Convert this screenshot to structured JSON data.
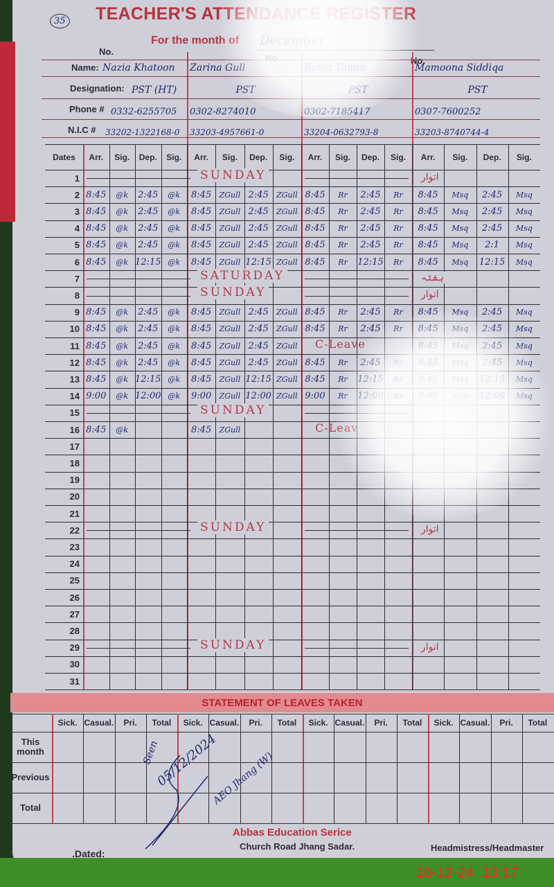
{
  "header": {
    "title": "TEACHER'S ATTENDANCE REGISTER",
    "month_label": "For the month of",
    "month_value": "December",
    "page_number": "35",
    "no_label": "No.",
    "name_label": "Name:",
    "designation_label": "Designation:",
    "phone_label": "Phone #",
    "nic_label": "N.I.C #"
  },
  "teachers": [
    {
      "name": "Nazia Khatoon",
      "designation": "PST (HT)",
      "phone": "0332-6255705",
      "nic": "33202-1322168-0"
    },
    {
      "name": "Zarina Gull",
      "designation": "PST",
      "phone": "0302-8274010",
      "nic": "33203-4957661-0"
    },
    {
      "name": "Rabia Tahira",
      "designation": "PST",
      "phone": "0302-7185417",
      "nic": "33204-0632793-8"
    },
    {
      "name": "Mamoona Siddiqa",
      "designation": "PST",
      "phone": "0307-7600252",
      "nic": "33203-8740744-4"
    }
  ],
  "grid": {
    "dates_label": "Dates",
    "sub_headers": [
      "Arr.",
      "Sig.",
      "Dep.",
      "Sig."
    ],
    "rows": [
      {
        "date": "1",
        "note": "SUNDAY",
        "urdu": "اتوار"
      },
      {
        "date": "2",
        "cells": [
          "8:45",
          "@k",
          "2:45",
          "@k",
          "8:45",
          "ZGull",
          "2:45",
          "ZGull",
          "8:45",
          "Rr",
          "2:45",
          "Rr",
          "8:45",
          "Msq",
          "2:45",
          "Msq"
        ]
      },
      {
        "date": "3",
        "cells": [
          "8:45",
          "@k",
          "2:45",
          "@k",
          "8:45",
          "ZGull",
          "2:45",
          "ZGull",
          "8:45",
          "Rr",
          "2:45",
          "Rr",
          "8:45",
          "Msq",
          "2:45",
          "Msq"
        ]
      },
      {
        "date": "4",
        "cells": [
          "8:45",
          "@k",
          "2:45",
          "@k",
          "8:45",
          "ZGull",
          "2:45",
          "ZGull",
          "8:45",
          "Rr",
          "2:45",
          "Rr",
          "8:45",
          "Msq",
          "2:45",
          "Msq"
        ]
      },
      {
        "date": "5",
        "cells": [
          "8:45",
          "@k",
          "2:45",
          "@k",
          "8:45",
          "ZGull",
          "2:45",
          "ZGull",
          "8:45",
          "Rr",
          "2:45",
          "Rr",
          "8:45",
          "Msq",
          "2:1",
          "Msq"
        ]
      },
      {
        "date": "6",
        "cells": [
          "8:45",
          "@k",
          "12:15",
          "@k",
          "8:45",
          "ZGull",
          "12:15",
          "ZGull",
          "8:45",
          "Rr",
          "12:15",
          "Rr",
          "8:45",
          "Msq",
          "12:15",
          "Msq"
        ]
      },
      {
        "date": "7",
        "note": "SATURDAY",
        "urdu": "ہفتہ"
      },
      {
        "date": "8",
        "note": "SUNDAY",
        "urdu": "اتوار"
      },
      {
        "date": "9",
        "cells": [
          "8:45",
          "@k",
          "2:45",
          "@k",
          "8:45",
          "ZGull",
          "2:45",
          "ZGull",
          "8:45",
          "Rr",
          "2:45",
          "Rr",
          "8:45",
          "Msq",
          "2:45",
          "Msq"
        ]
      },
      {
        "date": "10",
        "cells": [
          "8:45",
          "@k",
          "2:45",
          "@k",
          "8:45",
          "ZGull",
          "2:45",
          "ZGull",
          "8:45",
          "Rr",
          "2:45",
          "Rr",
          "8:45",
          "Msq",
          "2:45",
          "Msq"
        ]
      },
      {
        "date": "11",
        "cells": [
          "8:45",
          "@k",
          "2:45",
          "@k",
          "8:45",
          "ZGull",
          "2:45",
          "ZGull",
          "",
          "",
          "",
          "",
          "8:45",
          "Msq",
          "2:45",
          "Msq"
        ],
        "leave": {
          "teacher": 2,
          "text": "C-Leave"
        }
      },
      {
        "date": "12",
        "cells": [
          "8:45",
          "@k",
          "2:45",
          "@k",
          "8:45",
          "ZGull",
          "2:45",
          "ZGull",
          "8:45",
          "Rr",
          "2:45",
          "Rr",
          "8:45",
          "Msq",
          "2:45",
          "Msq"
        ]
      },
      {
        "date": "13",
        "cells": [
          "8:45",
          "@k",
          "12:15",
          "@k",
          "8:45",
          "ZGull",
          "12:15",
          "ZGull",
          "8:45",
          "Rr",
          "12:15",
          "Rr",
          "8:45",
          "Msq",
          "12:15",
          "Msq"
        ]
      },
      {
        "date": "14",
        "cells": [
          "9:00",
          "@k",
          "12:00",
          "@k",
          "9:00",
          "ZGull",
          "12:00",
          "ZGull",
          "9:00",
          "Rr",
          "12:00",
          "Rr",
          "9:00",
          "Msq",
          "12:00",
          "Msq"
        ]
      },
      {
        "date": "15",
        "note": "SUNDAY"
      },
      {
        "date": "16",
        "cells": [
          "8:45",
          "@k",
          "",
          "",
          "8:45",
          "ZGull",
          "",
          "",
          "",
          "",
          "",
          "",
          "",
          "",
          "",
          ""
        ],
        "leave": {
          "teacher": 2,
          "text": "C-Leav"
        }
      },
      {
        "date": "17"
      },
      {
        "date": "18"
      },
      {
        "date": "19"
      },
      {
        "date": "20"
      },
      {
        "date": "21"
      },
      {
        "date": "22",
        "note": "SUNDAY",
        "urdu": "اتوار"
      },
      {
        "date": "23"
      },
      {
        "date": "24"
      },
      {
        "date": "25"
      },
      {
        "date": "26"
      },
      {
        "date": "27"
      },
      {
        "date": "28"
      },
      {
        "date": "29",
        "note": "SUNDAY",
        "urdu": "اتوار"
      },
      {
        "date": "30"
      },
      {
        "date": "31"
      }
    ]
  },
  "leaves": {
    "title": "STATEMENT OF LEAVES TAKEN",
    "columns": [
      "Sick.",
      "Casual.",
      "Pri.",
      "Total"
    ],
    "rows": [
      "This month",
      "Previous",
      "Total"
    ]
  },
  "signature": {
    "line1": "Seen",
    "line2": "05/12/2024",
    "line3": "AEO Jhang (W)"
  },
  "footer": {
    "dated_label": ".Dated:",
    "company": "Abbas Education Serice",
    "address": "Church Road Jhang Sadar.",
    "signatory": "Headmistress/Headmaster"
  },
  "timestamp": "16-12-24  13:17",
  "colors": {
    "ink": "#1d2a6a",
    "print_red": "#b8323a",
    "paper": "#cfcfda"
  }
}
